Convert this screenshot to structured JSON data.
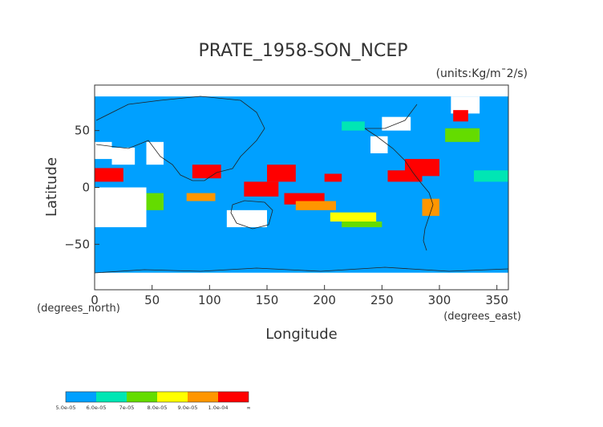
{
  "chart_data": {
    "type": "heatmap",
    "title": "PRATE_1958-SON_NCEP",
    "units_label": "(units:Kg/m¯2/s)",
    "xlabel": "Longitude",
    "ylabel": "Latitude",
    "x_unit_label": "(degrees_east)",
    "y_unit_label": "(degrees_north)",
    "xlim": [
      0,
      360
    ],
    "ylim": [
      -90,
      90
    ],
    "x_ticks": [
      0,
      50,
      100,
      150,
      200,
      250,
      300,
      350
    ],
    "y_ticks": [
      -50,
      0,
      50
    ],
    "x_tick_labels": [
      "0",
      "50",
      "100",
      "150",
      "200",
      "250",
      "300",
      "350"
    ],
    "y_tick_labels": [
      "−50",
      "0",
      "50"
    ],
    "background_color": "#00a0ff",
    "missing_color": "#ffffff",
    "colorbar": {
      "colors": [
        "#00a0ff",
        "#00e6b4",
        "#64dc00",
        "#ffff00",
        "#ff9600",
        "#ff0000"
      ],
      "labels": [
        "5.0e-05",
        "6.0e-05",
        "7e-05",
        "8.0e-05",
        "9.0e-05",
        "1.0e-04",
        "∞"
      ]
    },
    "regions": [
      {
        "level": 5,
        "lon": [
          0,
          25
        ],
        "lat": [
          5,
          17
        ]
      },
      {
        "level": 5,
        "lon": [
          85,
          110
        ],
        "lat": [
          8,
          20
        ]
      },
      {
        "level": 5,
        "lon": [
          130,
          160
        ],
        "lat": [
          -8,
          5
        ]
      },
      {
        "level": 5,
        "lon": [
          150,
          175
        ],
        "lat": [
          5,
          20
        ]
      },
      {
        "level": 5,
        "lon": [
          165,
          200
        ],
        "lat": [
          -15,
          -5
        ]
      },
      {
        "level": 5,
        "lon": [
          200,
          215
        ],
        "lat": [
          5,
          12
        ]
      },
      {
        "level": 5,
        "lon": [
          255,
          285
        ],
        "lat": [
          5,
          15
        ]
      },
      {
        "level": 5,
        "lon": [
          270,
          300
        ],
        "lat": [
          10,
          25
        ]
      },
      {
        "level": 5,
        "lon": [
          312,
          325
        ],
        "lat": [
          58,
          68
        ]
      },
      {
        "level": 4,
        "lon": [
          80,
          105
        ],
        "lat": [
          -12,
          -5
        ]
      },
      {
        "level": 4,
        "lon": [
          175,
          210
        ],
        "lat": [
          -20,
          -12
        ]
      },
      {
        "level": 4,
        "lon": [
          285,
          300
        ],
        "lat": [
          -25,
          -10
        ]
      },
      {
        "level": 3,
        "lon": [
          205,
          245
        ],
        "lat": [
          -30,
          -22
        ]
      },
      {
        "level": 2,
        "lon": [
          215,
          250
        ],
        "lat": [
          -35,
          -30
        ]
      },
      {
        "level": 2,
        "lon": [
          305,
          335
        ],
        "lat": [
          40,
          52
        ]
      },
      {
        "level": 1,
        "lon": [
          215,
          235
        ],
        "lat": [
          50,
          58
        ]
      },
      {
        "level": 2,
        "lon": [
          45,
          60
        ],
        "lat": [
          -20,
          -5
        ]
      },
      {
        "level": 1,
        "lon": [
          330,
          360
        ],
        "lat": [
          5,
          15
        ]
      }
    ],
    "missing_regions": [
      {
        "lon": [
          0,
          45
        ],
        "lat": [
          -35,
          0
        ]
      },
      {
        "lon": [
          15,
          35
        ],
        "lat": [
          20,
          35
        ]
      },
      {
        "lon": [
          45,
          60
        ],
        "lat": [
          20,
          40
        ]
      },
      {
        "lon": [
          0,
          15
        ],
        "lat": [
          25,
          40
        ]
      },
      {
        "lon": [
          115,
          150
        ],
        "lat": [
          -35,
          -20
        ]
      },
      {
        "lon": [
          240,
          255
        ],
        "lat": [
          30,
          45
        ]
      },
      {
        "lon": [
          250,
          275
        ],
        "lat": [
          50,
          62
        ]
      },
      {
        "lon": [
          0,
          360
        ],
        "lat": [
          -90,
          -75
        ]
      },
      {
        "lon": [
          0,
          360
        ],
        "lat": [
          80,
          90
        ]
      },
      {
        "lon": [
          310,
          335
        ],
        "lat": [
          65,
          80
        ]
      }
    ]
  }
}
